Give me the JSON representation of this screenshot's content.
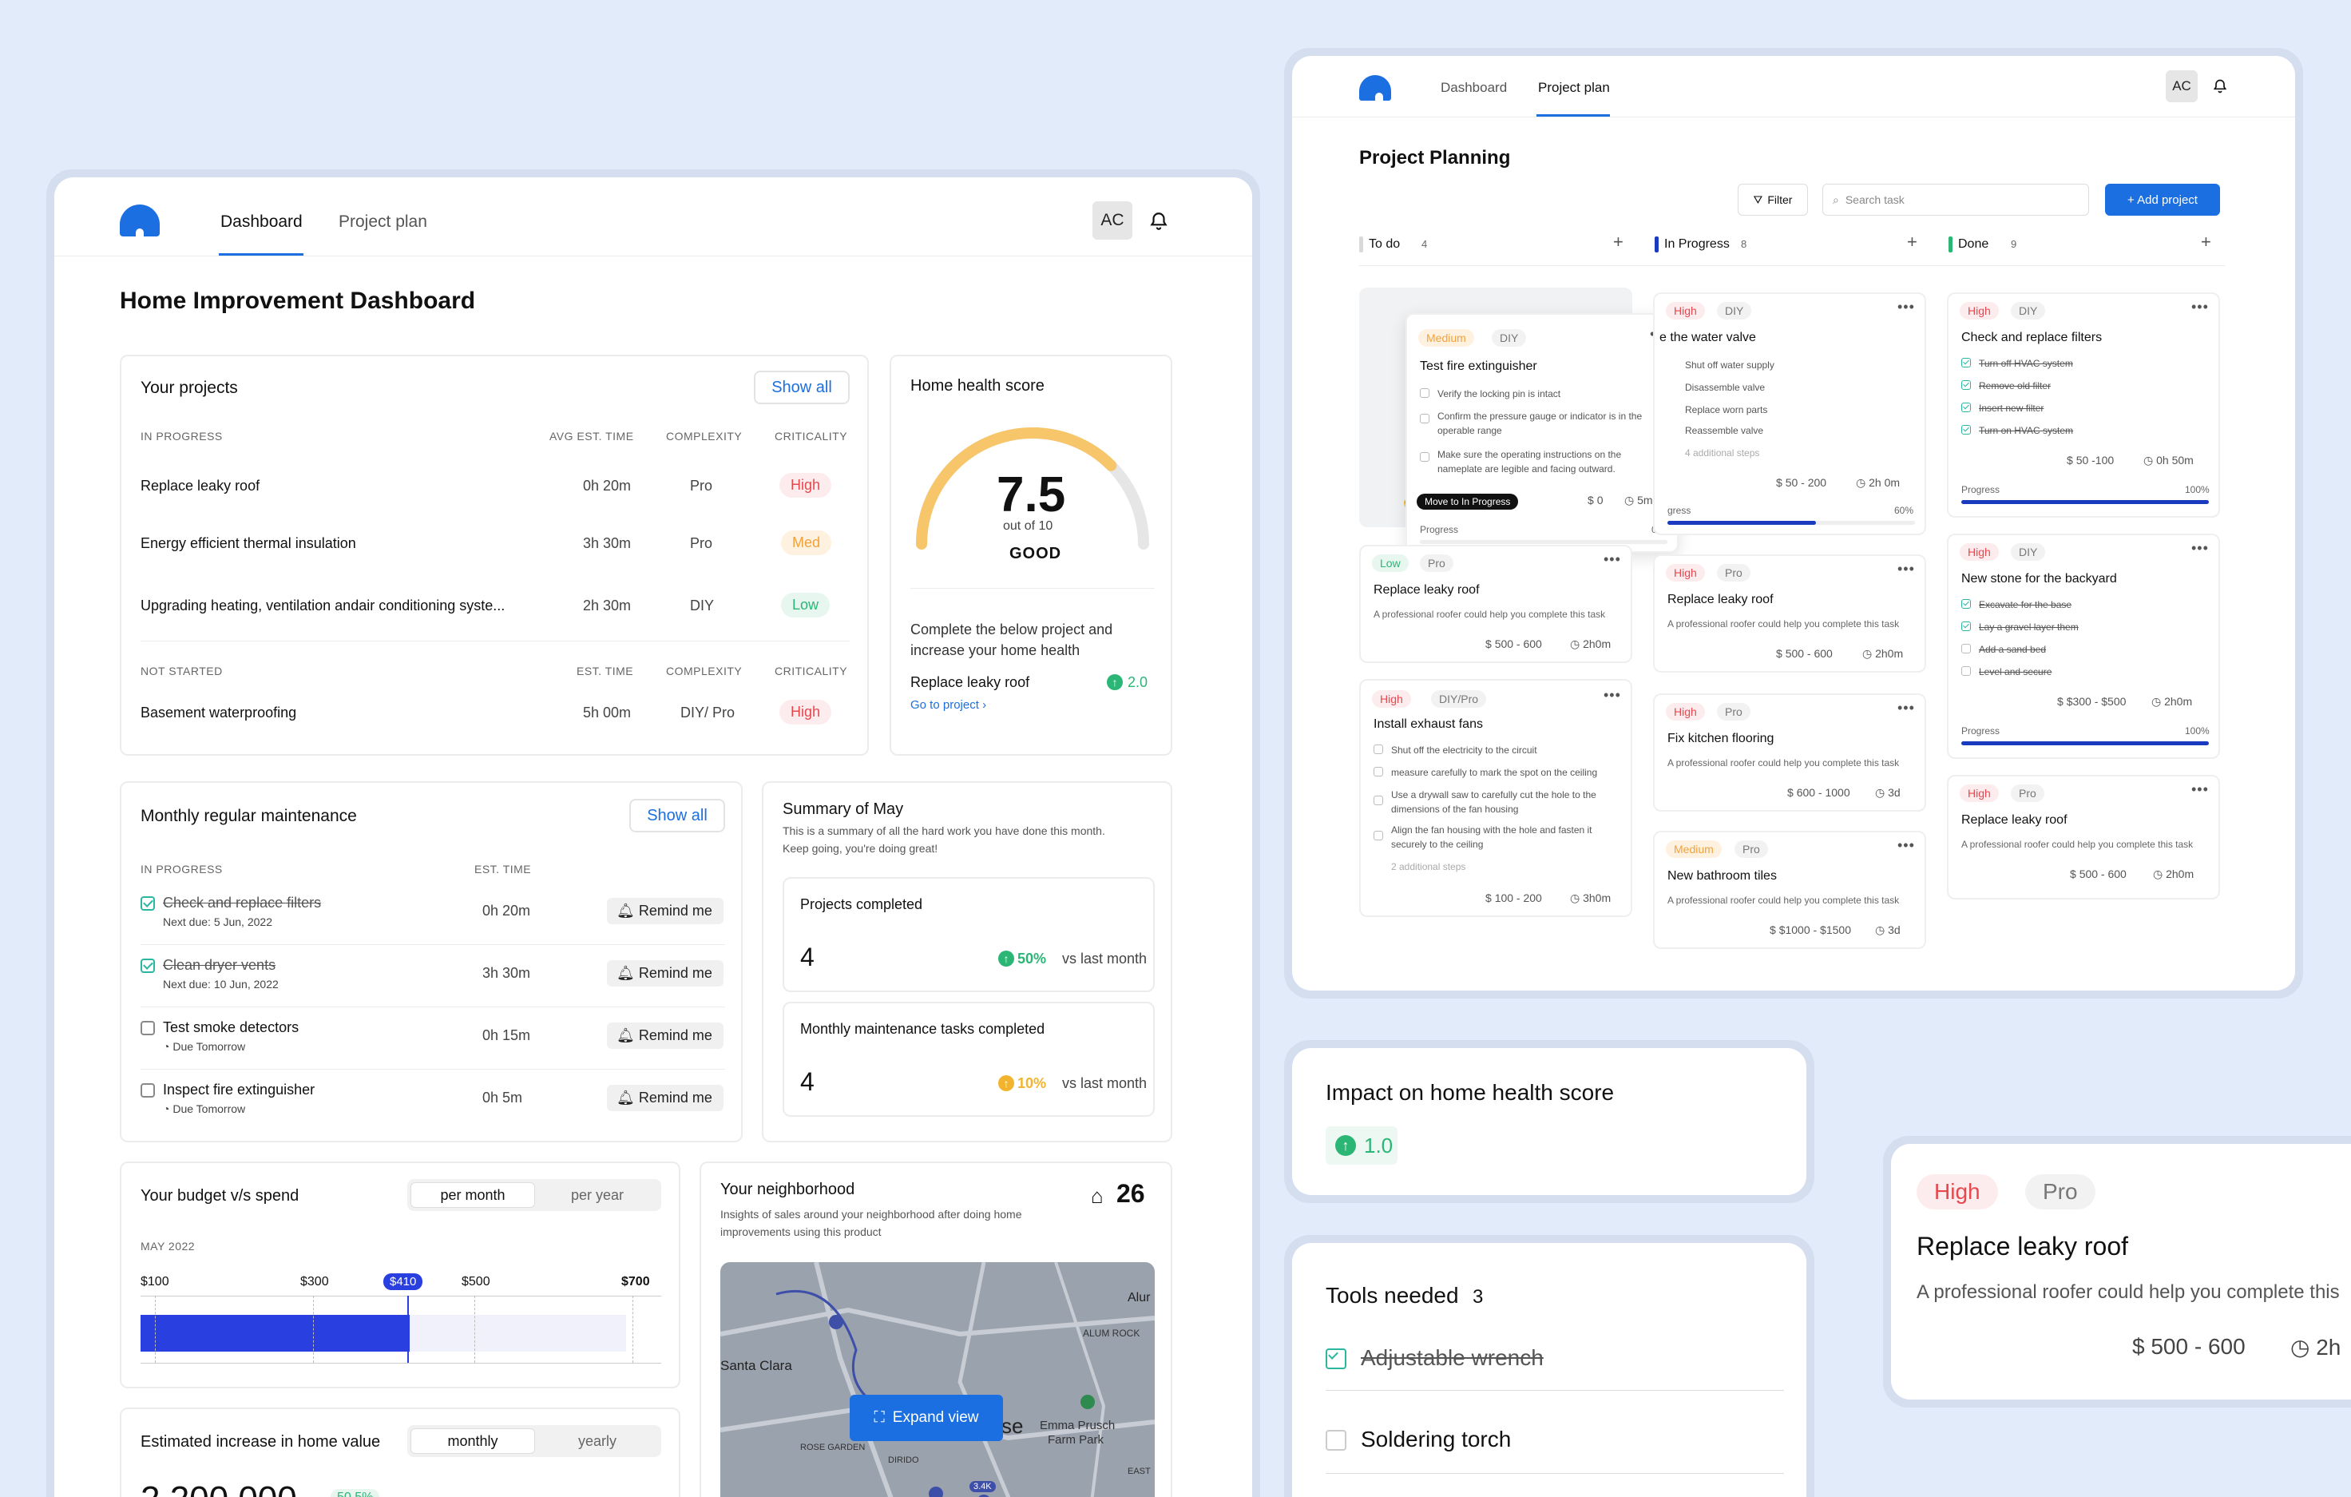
{
  "dashboard": {
    "nav": {
      "tab_dashboard": "Dashboard",
      "tab_project_plan": "Project plan",
      "avatar": "AC"
    },
    "title": "Home Improvement Dashboard",
    "projects": {
      "title": "Your projects",
      "show_all": "Show all",
      "in_progress_header": {
        "label": "IN PROGRESS",
        "time": "AVG EST. TIME",
        "complexity": "COMPLEXITY",
        "criticality": "CRITICALITY"
      },
      "in_progress": [
        {
          "name": "Replace leaky roof",
          "time": "0h 20m",
          "complexity": "Pro",
          "criticality": "High"
        },
        {
          "name": "Energy efficient thermal insulation",
          "time": "3h 30m",
          "complexity": "Pro",
          "criticality": "Med"
        },
        {
          "name": "Upgrading heating, ventilation andair conditioning syste...",
          "time": "2h 30m",
          "complexity": "DIY",
          "criticality": "Low"
        }
      ],
      "not_started_header": {
        "label": "NOT STARTED",
        "time": "EST. TIME",
        "complexity": "COMPLEXITY",
        "criticality": "CRITICALITY"
      },
      "not_started": [
        {
          "name": "Basement waterproofing",
          "time": "5h 00m",
          "complexity": "DIY/ Pro",
          "criticality": "High"
        }
      ]
    },
    "health": {
      "title": "Home health score",
      "score": "7.5",
      "out_of": "out of 10",
      "rating": "GOOD",
      "score_fraction": 0.75,
      "desc_line1": "Complete the below project and",
      "desc_line2": "increase your home health",
      "project": "Replace leaky roof",
      "delta": "2.0",
      "link": "Go to project"
    },
    "maintenance": {
      "title": "Monthly regular maintenance",
      "show_all": "Show all",
      "col_label": "IN PROGRESS",
      "col_time": "EST. TIME",
      "items": [
        {
          "name": "Check and replace filters",
          "sub": "Next due: 5 Jun, 2022",
          "time": "0h 20m",
          "button": "Remind me",
          "done": true
        },
        {
          "name": "Clean dryer vents",
          "sub": "Next due: 10 Jun, 2022",
          "time": "3h 30m",
          "button": "Remind me",
          "done": true
        },
        {
          "name": "Test smoke detectors",
          "sub": "Due Tomorrow",
          "time": "0h 15m",
          "button": "Remind me",
          "done": false
        },
        {
          "name": "Inspect fire extinguisher",
          "sub": "Due Tomorrow",
          "time": "0h 5m",
          "button": "Remind me",
          "done": false
        }
      ]
    },
    "summary": {
      "title": "Summary of May",
      "desc_line1": "This is a summary of all the hard work you have done this month.",
      "desc_line2": "Keep going, you're doing great!",
      "projects_completed": {
        "label": "Projects completed",
        "value": "4",
        "change": "50%",
        "vs": "vs last month"
      },
      "tasks_completed": {
        "label": "Monthly maintenance tasks completed",
        "value": "4",
        "change": "10%",
        "vs": "vs last month"
      }
    },
    "budget": {
      "title": "Your budget v/s spend",
      "tab_on": "per month",
      "tab_off": "per year",
      "month": "MAY 2022",
      "ticks": [
        "$100",
        "$300",
        "$410",
        "$500",
        "$700"
      ],
      "spend_fraction": 0.555
    },
    "neighborhood": {
      "title": "Your neighborhood",
      "count": "26",
      "desc_line1": "Insights of sales around your neighborhood after doing home",
      "desc_line2": "improvements using this product",
      "expand": "Expand view",
      "map_labels": [
        "Santa Clara",
        "se",
        "ALUM ROCK",
        "Emma Prusch",
        "Farm Park",
        "ROSE GARDEN",
        "DIRIDO",
        "Alur",
        "EAST",
        "3.4K"
      ]
    },
    "home_value": {
      "title": "Estimated increase in home value",
      "tab_on": "monthly",
      "tab_off": "yearly",
      "value": "2,200,000",
      "change": "50.5%"
    }
  },
  "planning": {
    "nav": {
      "tab_dashboard": "Dashboard",
      "tab_project_plan": "Project plan",
      "avatar": "AC"
    },
    "title": "Project Planning",
    "filter": "Filter",
    "search_placeholder": "Search task",
    "add": "+ Add project",
    "columns": [
      {
        "name": "To do",
        "count": "4",
        "color": "#d9d9d9"
      },
      {
        "name": "In Progress",
        "count": "8",
        "color": "#1a3bbf"
      },
      {
        "name": "Done",
        "count": "9",
        "color": "#2bb676"
      }
    ],
    "todo": {
      "fire": {
        "tag1": "Medium",
        "tag2": "DIY",
        "title": "Test fire extinguisher",
        "steps": [
          "Verify the locking pin is intact",
          "Confirm the pressure gauge or indicator is in the",
          "operable range",
          "Make sure the operating instructions on the",
          "nameplate are legible and facing outward."
        ],
        "tooltip": "Move to In Progress",
        "cost": "0",
        "time": "5m",
        "progress_label": "Progress",
        "progress": "0%"
      },
      "roof": {
        "tag1": "Low",
        "tag2": "Pro",
        "title": "Replace leaky roof",
        "desc": "A professional roofer could help you complete this task",
        "cost": "500 - 600",
        "time": "2h0m"
      },
      "fans": {
        "tag1": "High",
        "tag2": "DIY/Pro",
        "title": "Install exhaust fans",
        "steps": [
          "Shut off the electricity to the circuit",
          "measure carefully to mark the spot on the ceiling",
          "Use a drywall saw to carefully cut the hole to the",
          "dimensions of the fan housing",
          "Align the fan housing with the hole and fasten it",
          "securely to the ceiling"
        ],
        "more": "2 additional steps",
        "cost": "100 - 200",
        "time": "3h0m"
      }
    },
    "inprogress": {
      "valve": {
        "tag1": "High",
        "tag2": "DIY",
        "title": "e the water valve",
        "steps": [
          "Shut off water supply",
          "Disassemble valve",
          "Replace worn parts",
          "Reassemble valve"
        ],
        "more": "4 additional steps",
        "cost": "50 - 200",
        "time": "2h 0m",
        "progress_label": "gress",
        "progress": "60%",
        "progress_value": 0.6
      },
      "roof": {
        "tag1": "High",
        "tag2": "Pro",
        "title": "Replace leaky roof",
        "desc": "A professional roofer could help you complete this task",
        "cost": "500 - 600",
        "time": "2h0m"
      },
      "floor": {
        "tag1": "High",
        "tag2": "Pro",
        "title": "Fix kitchen flooring",
        "desc": "A professional roofer could help you complete this task",
        "cost": "600 - 1000",
        "time": "3d"
      },
      "tiles": {
        "tag1": "Medium",
        "tag2": "Pro",
        "title": "New bathroom tiles",
        "desc": "A professional roofer could help you complete this task",
        "cost": "$1000 - $1500",
        "time": "3d"
      }
    },
    "done": {
      "filters": {
        "tag1": "High",
        "tag2": "DIY",
        "title": "Check and replace filters",
        "steps": [
          "Turn off HVAC system",
          "Remove old filter",
          "Insert new filter",
          "Turn on HVAC system"
        ],
        "cost": "50 -100",
        "time": "0h 50m",
        "progress_label": "Progress",
        "progress": "100%",
        "progress_value": 1.0
      },
      "stone": {
        "tag1": "High",
        "tag2": "DIY",
        "title": "New stone for the backyard",
        "steps": [
          "Excavate for the base",
          "Lay a gravel layer them",
          "Add a sand bed",
          "Level and secure"
        ],
        "cost": "$300 - $500",
        "time": "2h0m",
        "progress_label": "Progress",
        "progress": "100%",
        "progress_value": 1.0
      },
      "roof": {
        "tag1": "High",
        "tag2": "Pro",
        "title": "Replace leaky roof",
        "desc": "A professional roofer could help you complete this task",
        "cost": "500 - 600",
        "time": "2h0m"
      }
    }
  },
  "impact": {
    "title": "Impact on home health score",
    "value": "1.0"
  },
  "tools": {
    "title": "Tools needed",
    "count": "3",
    "items": [
      {
        "name": "Adjustable wrench",
        "done": true
      },
      {
        "name": "Soldering torch",
        "done": false
      }
    ]
  },
  "zoom_card": {
    "tag1": "High",
    "tag2": "Pro",
    "title": "Replace leaky roof",
    "desc": "A professional roofer could help you complete this",
    "cost": "500 - 600",
    "time": "2h"
  },
  "colors": {
    "accent": "#1b6fe0",
    "high": "#e5484d",
    "medium": "#f2a23a",
    "low": "#2bb676",
    "progress": "#1a3bbf",
    "background": "#e2ebf9"
  }
}
